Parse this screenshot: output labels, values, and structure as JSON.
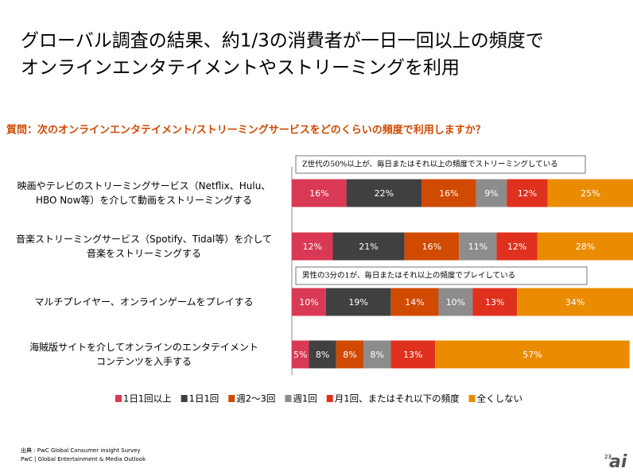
{
  "chart_data": {
    "type": "stacked-barh",
    "title": [
      "グローバル調査の結果、約1/3の消費者が一日一回以上の頻度で",
      "オンラインエンタテイメントやストリーミングを利用"
    ],
    "subtitle": "質問：次のオンラインエンタテイメント/ストリーミングサービスをどのくらいの頻度で利用しますか？",
    "categories": [
      "映画やテレビのストリーミングサービス（Netflix、Hulu、\nHBO Now等）を介して動画をストリーミングする",
      "音楽ストリーミングサービス（Spotify、Tidal等）を介して\n音楽をストリーミングする",
      "マルチプレイヤー、オンラインゲームをプレイする",
      "海賊版サイトを介してオンラインのエンタテイメント\nコンテンツを入手する"
    ],
    "xlim": [
      0,
      100
    ],
    "series": [
      {
        "name": "1日1回以上",
        "color": "#d93954",
        "values": [
          16,
          12,
          10,
          5
        ],
        "value_labels": [
          "16%",
          "12%",
          "10%",
          "5%"
        ]
      },
      {
        "name": "1日1回",
        "color": "#404040",
        "values": [
          22,
          21,
          19,
          8
        ],
        "value_labels": [
          "22%",
          "21%",
          "19%",
          "8%"
        ]
      },
      {
        "name": "週2～3回",
        "color": "#d04a02",
        "values": [
          16,
          16,
          14,
          8
        ],
        "value_labels": [
          "16%",
          "16%",
          "14%",
          "8%"
        ]
      },
      {
        "name": "週1回",
        "color": "#8c8c8c",
        "values": [
          9,
          11,
          10,
          8
        ],
        "value_labels": [
          "9%",
          "11%",
          "10%",
          "8%"
        ]
      },
      {
        "name": "月1回、またはそれ以下の頻度",
        "color": "#e0301e",
        "values": [
          12,
          12,
          13,
          13
        ],
        "value_labels": [
          "12%",
          "12%",
          "13%",
          "13%"
        ]
      },
      {
        "name": "全くしない",
        "color": "#eb8c00",
        "values": [
          25,
          28,
          34,
          57
        ],
        "value_labels": [
          "25%",
          "28%",
          "34%",
          "57%"
        ]
      }
    ],
    "annotations": [
      "Z世代の50%以上が、毎日またはそれ以上の頻度でストリーミングしている",
      "男性の3分の1が、毎日またはそれ以上の頻度でプレイしている"
    ],
    "source": "出典 : PwC Global Consumer insight Survey",
    "footer": "PwC | Global Entertainment & Media Outlook",
    "page_number": "23",
    "logo": "ai"
  }
}
